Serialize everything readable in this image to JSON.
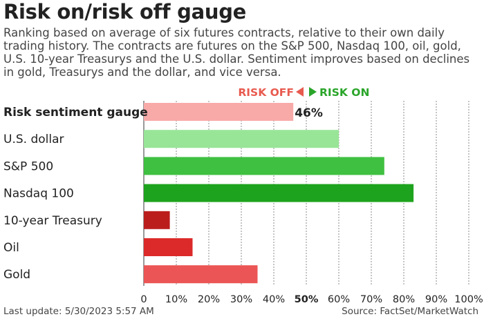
{
  "title": "Risk on/risk off gauge",
  "subtitle": "Ranking based on average of six futures contracts, relative to their own daily trading history. The contracts are futures on the S&P 500, Nasdaq 100, oil, gold, U.S. 10-year Treasurys and the U.S. dollar. Sentiment improves based on declines in gold, Treasurys and the dollar, and vice versa.",
  "legend": {
    "risk_off": "RISK OFF",
    "risk_on": "RISK ON",
    "risk_off_color": "#e85a4f",
    "risk_on_color": "#2aa52a"
  },
  "footer": {
    "last_update": "Last update: 5/30/2023 5:57 AM",
    "source": "Source: FactSet/MarketWatch"
  },
  "chart_data": {
    "type": "bar",
    "orientation": "horizontal",
    "categories": [
      "Risk sentiment gauge",
      "U.S. dollar",
      "S&P 500",
      "Nasdaq 100",
      "10-year Treasury",
      "Oil",
      "Gold"
    ],
    "values": [
      46,
      60,
      74,
      83,
      8,
      15,
      35
    ],
    "colors": [
      "#f8aaa8",
      "#98e598",
      "#40c040",
      "#1ea31e",
      "#bb1d1d",
      "#dc2a2a",
      "#ec5555"
    ],
    "value_labels": [
      "46%",
      "",
      "",
      "",
      "",
      "",
      ""
    ],
    "bold_categories": [
      "Risk sentiment gauge"
    ],
    "xlim": [
      0,
      100
    ],
    "xticks": [
      0,
      10,
      20,
      30,
      40,
      50,
      60,
      70,
      80,
      90,
      100
    ],
    "xtick_labels": [
      "0",
      "10%",
      "20%",
      "30%",
      "40%",
      "50%",
      "60%",
      "70%",
      "80%",
      "90%",
      "100%"
    ],
    "bold_tick": "50%",
    "grid": "vertical dotted"
  }
}
